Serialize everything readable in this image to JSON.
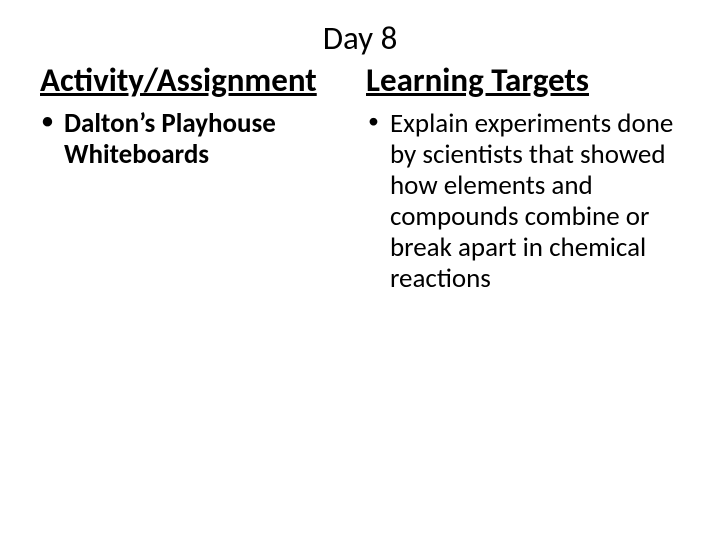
{
  "title": "Day 8",
  "left": {
    "heading": "Activity/Assignment",
    "items": [
      {
        "text": "Dalton’s Playhouse Whiteboards",
        "bold": true
      }
    ]
  },
  "right": {
    "heading": "Learning Targets",
    "items": [
      {
        "text": "Explain experiments done by scientists that showed how elements and compounds combine or break apart in chemical reactions",
        "bold": false
      }
    ]
  },
  "style": {
    "background_color": "#ffffff",
    "text_color": "#000000",
    "title_fontsize": 33,
    "heading_fontsize": 33,
    "body_fontsize": 27,
    "font_family": "Calibri"
  }
}
